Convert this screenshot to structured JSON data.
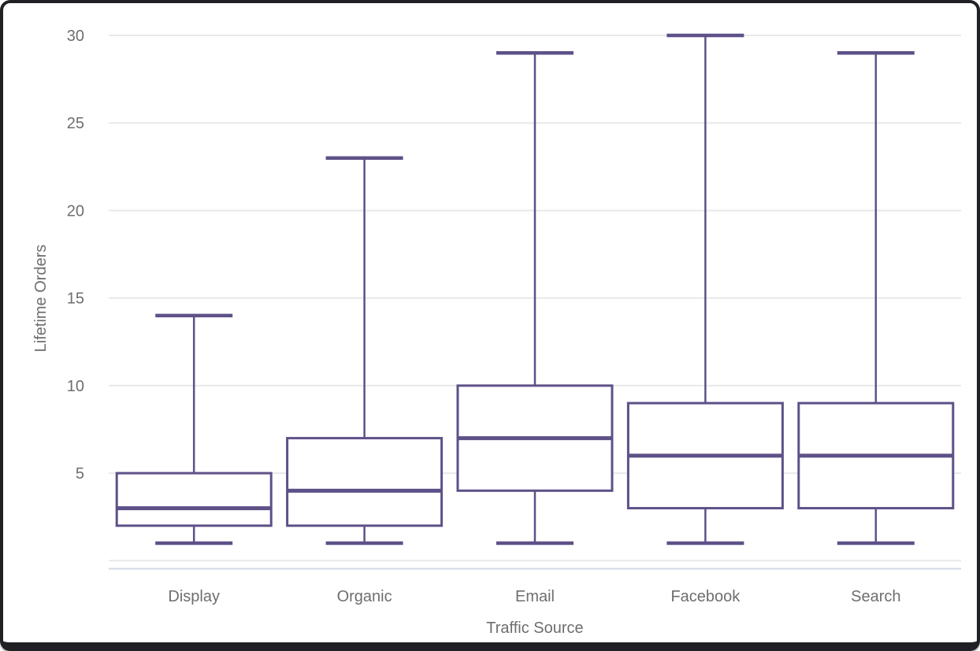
{
  "chart_data": {
    "type": "boxplot",
    "title": "",
    "xlabel": "Traffic Source",
    "ylabel": "Lifetime Orders",
    "categories": [
      "Display",
      "Organic",
      "Email",
      "Facebook",
      "Search"
    ],
    "yticks": [
      5,
      10,
      15,
      20,
      25,
      30
    ],
    "ylim": [
      0,
      30
    ],
    "grid": true,
    "legend": false,
    "series": [
      {
        "category": "Display",
        "min": 1,
        "q1": 2,
        "median": 3,
        "q3": 5,
        "max": 14
      },
      {
        "category": "Organic",
        "min": 1,
        "q1": 2,
        "median": 4,
        "q3": 7,
        "max": 23
      },
      {
        "category": "Email",
        "min": 1,
        "q1": 4,
        "median": 7,
        "q3": 10,
        "max": 29
      },
      {
        "category": "Facebook",
        "min": 1,
        "q1": 3,
        "median": 6,
        "q3": 9,
        "max": 30
      },
      {
        "category": "Search",
        "min": 1,
        "q1": 3,
        "median": 6,
        "q3": 9,
        "max": 29
      }
    ]
  },
  "colors": {
    "box_stroke": "#5e5188",
    "box_fill": "#ffffff",
    "gridline": "#e8e8e8",
    "axis_line": "#d6d8e7",
    "label_text": "#6e6e6e",
    "frame": "#202124",
    "background": "#ffffff"
  }
}
